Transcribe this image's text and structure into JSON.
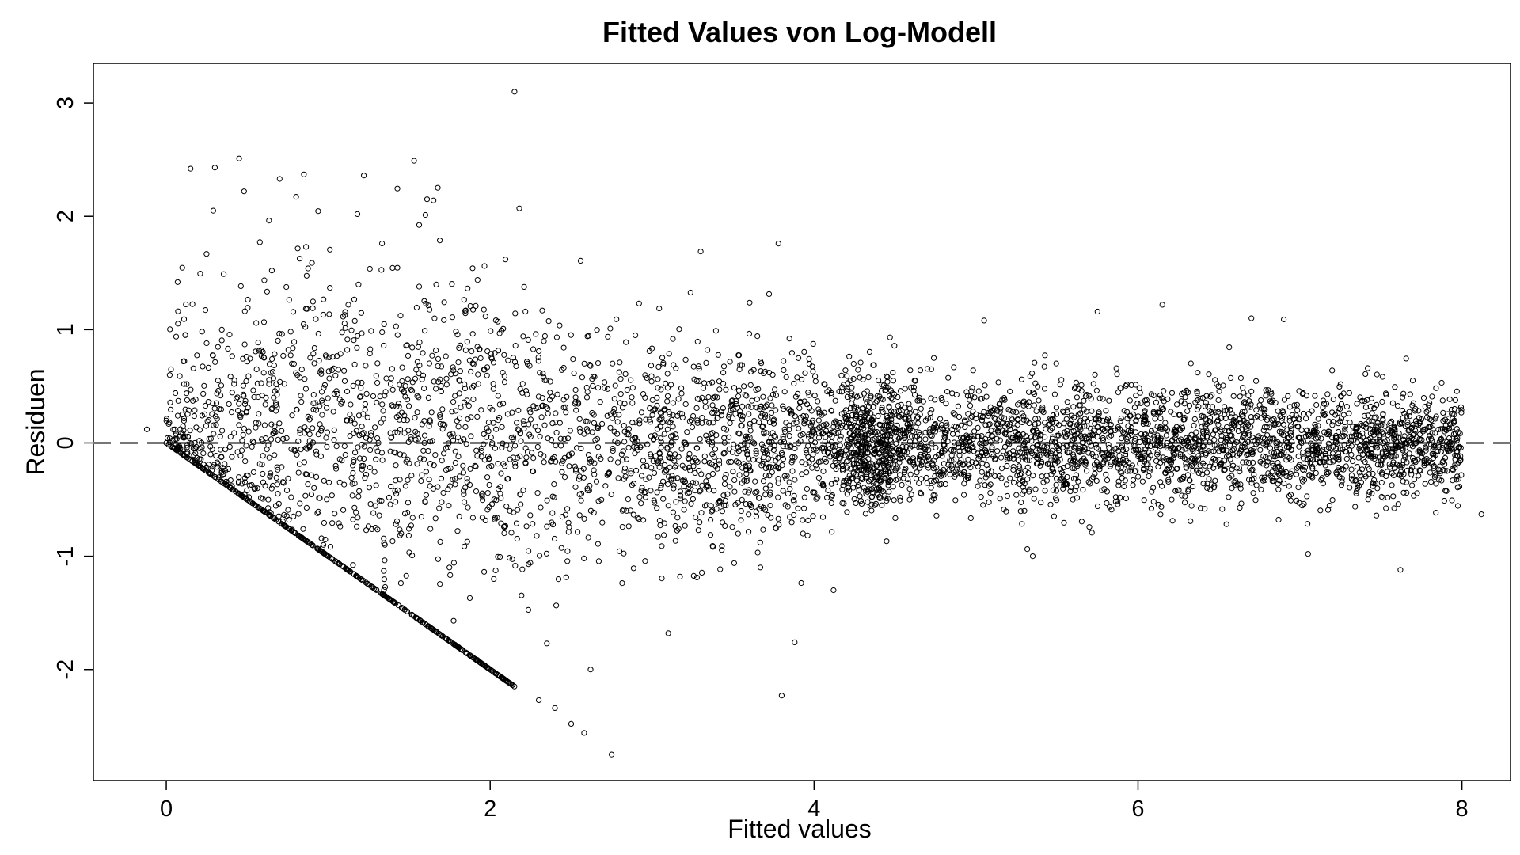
{
  "chart_data": {
    "type": "scatter",
    "title": "Fitted Values von Log-Modell",
    "xlabel": "Fitted values",
    "ylabel": "Residuen",
    "xlim": [
      -0.45,
      8.3
    ],
    "ylim": [
      -2.98,
      3.35
    ],
    "xticks": [
      0,
      2,
      4,
      6,
      8
    ],
    "yticks": [
      -2,
      -1,
      0,
      1,
      2,
      3
    ],
    "xtick_labels": [
      "0",
      "2",
      "4",
      "6",
      "8"
    ],
    "ytick_labels": [
      "-2",
      "-1",
      "0",
      "1",
      "2",
      "3"
    ],
    "reference_line": {
      "y": 0,
      "style": "dashed",
      "color": "#777777"
    },
    "grid": false,
    "legend": "none",
    "point_style": {
      "shape": "open-circle",
      "color": "#000000"
    },
    "highlighted_points": [
      {
        "x": 2.15,
        "y": 3.1
      },
      {
        "x": 0.45,
        "y": 2.51
      },
      {
        "x": 0.3,
        "y": 2.43
      },
      {
        "x": 0.15,
        "y": 2.42
      },
      {
        "x": 1.53,
        "y": 2.49
      },
      {
        "x": 0.85,
        "y": 2.37
      },
      {
        "x": 1.22,
        "y": 2.36
      },
      {
        "x": 0.7,
        "y": 2.33
      },
      {
        "x": 0.48,
        "y": 2.22
      },
      {
        "x": 1.65,
        "y": 2.14
      },
      {
        "x": 2.18,
        "y": 2.07
      },
      {
        "x": 0.29,
        "y": 2.05
      },
      {
        "x": 1.18,
        "y": 2.02
      },
      {
        "x": 3.3,
        "y": 1.69
      },
      {
        "x": 3.78,
        "y": 1.76
      },
      {
        "x": 6.15,
        "y": 1.22
      },
      {
        "x": 6.7,
        "y": 1.1
      },
      {
        "x": 6.9,
        "y": 1.09
      },
      {
        "x": 5.05,
        "y": 1.08
      },
      {
        "x": 5.75,
        "y": 1.16
      },
      {
        "x": 8.12,
        "y": -0.63
      },
      {
        "x": 7.62,
        "y": -1.12
      },
      {
        "x": 7.05,
        "y": -0.98
      },
      {
        "x": 5.35,
        "y": -1.0
      },
      {
        "x": 3.8,
        "y": -2.23
      },
      {
        "x": 3.88,
        "y": -1.76
      },
      {
        "x": 4.12,
        "y": -1.3
      },
      {
        "x": 3.1,
        "y": -1.68
      },
      {
        "x": 2.62,
        "y": -2.0
      },
      {
        "x": 2.5,
        "y": -2.48
      },
      {
        "x": 2.58,
        "y": -2.56
      },
      {
        "x": 2.75,
        "y": -2.75
      },
      {
        "x": 2.35,
        "y": -1.77
      },
      {
        "x": 2.3,
        "y": -2.27
      },
      {
        "x": 2.4,
        "y": -2.34
      },
      {
        "x": 0.0,
        "y": 0.0
      },
      {
        "x": -0.12,
        "y": 0.12
      }
    ],
    "boundary_line": {
      "description": "lower boundary y = -x",
      "x_range": [
        0,
        2.15
      ]
    }
  }
}
